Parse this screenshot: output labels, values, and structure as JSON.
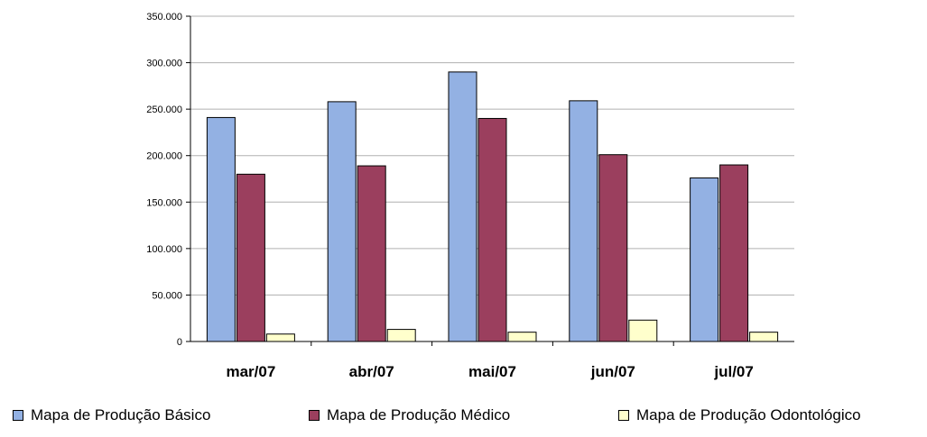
{
  "chart_data": {
    "type": "bar",
    "categories": [
      "mar/07",
      "abr/07",
      "mai/07",
      "jun/07",
      "jul/07"
    ],
    "series": [
      {
        "name": "Mapa de Produção Básico",
        "color": "#93B1E3",
        "values": [
          241000,
          258000,
          290000,
          259000,
          176000
        ]
      },
      {
        "name": "Mapa de Produção Médico",
        "color": "#9B3F5E",
        "values": [
          180000,
          189000,
          240000,
          201000,
          190000
        ]
      },
      {
        "name": "Mapa de Produção Odontológico",
        "color": "#FFFFCC",
        "values": [
          8000,
          13000,
          10000,
          23000,
          10000
        ]
      }
    ],
    "yticks": [
      "0",
      "50.000",
      "100.000",
      "150.000",
      "200.000",
      "250.000",
      "300.000",
      "350.000"
    ],
    "ylim": [
      0,
      350000
    ],
    "grid": true,
    "legend_position": "bottom",
    "title": "",
    "xlabel": "",
    "ylabel": ""
  }
}
